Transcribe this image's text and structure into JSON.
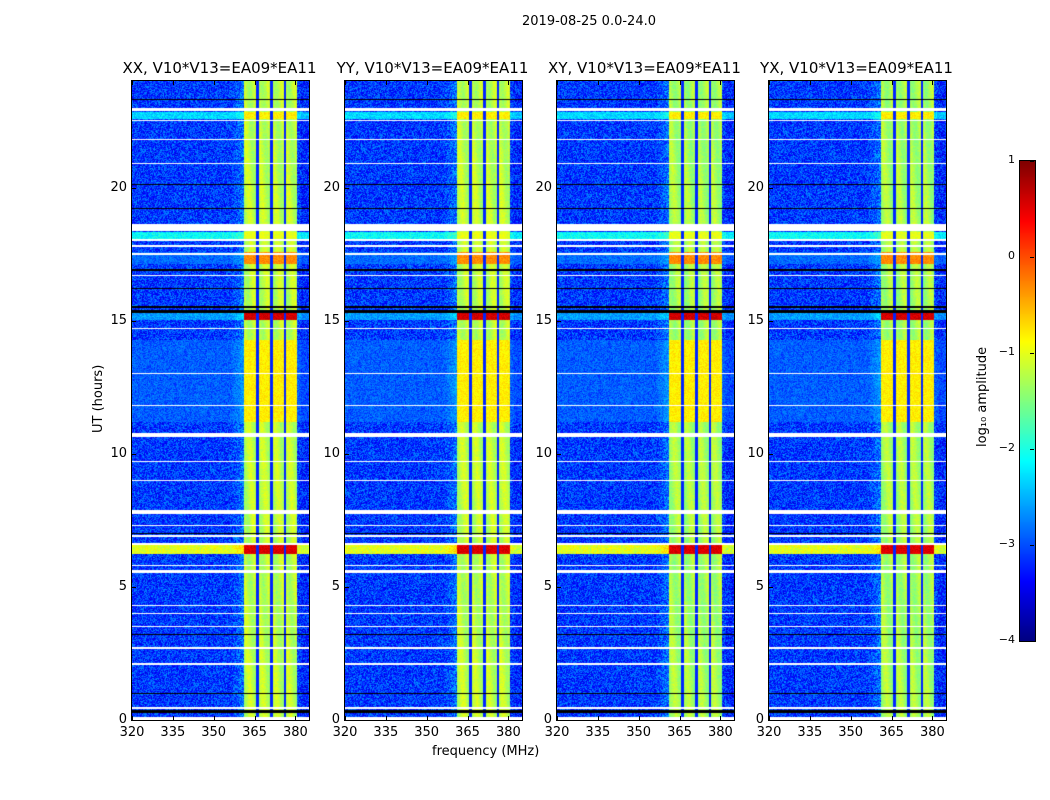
{
  "figure": {
    "suptitle": "2019-08-25 0.0-24.0"
  },
  "chart_data": {
    "type": "heatmap",
    "title": "2019-08-25 0.0-24.0",
    "xlabel": "frequency (MHz)",
    "ylabel": "UT (hours)",
    "xlim": [
      320,
      385
    ],
    "ylim": [
      0,
      24
    ],
    "xticks": [
      320,
      335,
      350,
      365,
      380
    ],
    "yticks": [
      0,
      5,
      10,
      15,
      20
    ],
    "panels": [
      {
        "title": "XX, V10*V13=EA09*EA11"
      },
      {
        "title": "YY, V10*V13=EA09*EA11"
      },
      {
        "title": "XY, V10*V13=EA09*EA11"
      },
      {
        "title": "YX, V10*V13=EA09*EA11"
      }
    ],
    "signal_band_mhz": [
      361,
      380.5
    ],
    "subband_edges_mhz": [
      365.8,
      371,
      376
    ],
    "background_log10_amplitude": -3.1,
    "band_log10_amplitude": -1.3,
    "flagged_hours": [
      [
        0.0,
        0.15
      ],
      [
        0.45,
        0.5
      ],
      [
        2.1,
        2.15
      ],
      [
        2.7,
        2.75
      ],
      [
        3.5,
        3.55
      ],
      [
        4.0,
        4.05
      ],
      [
        4.3,
        4.35
      ],
      [
        5.55,
        5.65
      ],
      [
        5.8,
        5.85
      ],
      [
        6.6,
        6.68
      ],
      [
        6.9,
        6.95
      ],
      [
        7.3,
        7.35
      ],
      [
        7.75,
        7.9
      ],
      [
        9.0,
        9.05
      ],
      [
        9.7,
        9.75
      ],
      [
        10.65,
        10.8
      ],
      [
        11.8,
        11.85
      ],
      [
        13.0,
        13.05
      ],
      [
        14.7,
        14.75
      ],
      [
        16.7,
        16.75
      ],
      [
        17.5,
        17.55
      ],
      [
        17.8,
        17.85
      ],
      [
        18.0,
        18.08
      ],
      [
        18.4,
        18.65
      ],
      [
        20.9,
        20.95
      ],
      [
        21.8,
        21.85
      ],
      [
        22.5,
        22.55
      ],
      [
        22.9,
        23.0
      ]
    ],
    "dropout_hours": [
      [
        0.3,
        0.4
      ],
      [
        1.0,
        1.05
      ],
      [
        3.2,
        3.25
      ],
      [
        7.0,
        7.05
      ],
      [
        15.3,
        15.4
      ],
      [
        15.5,
        15.55
      ],
      [
        16.2,
        16.25
      ],
      [
        16.9,
        16.95
      ],
      [
        19.2,
        19.25
      ],
      [
        20.1,
        20.15
      ],
      [
        23.3,
        23.35
      ]
    ],
    "bright_hours": [
      {
        "range": [
          15.05,
          15.35
        ],
        "band": 0.6,
        "off": -2.6
      },
      {
        "range": [
          6.25,
          6.6
        ],
        "band": 0.55,
        "off": -1.0
      },
      {
        "range": [
          17.15,
          17.6
        ],
        "band": -0.3,
        "off": -2.9
      },
      {
        "range": [
          22.6,
          22.85
        ],
        "band": -0.8,
        "off": -2.3
      },
      {
        "range": [
          18.1,
          18.35
        ],
        "band": -1.0,
        "off": -2.1
      },
      {
        "range": [
          11.2,
          14.3
        ],
        "band": -0.8,
        "off": -3.0
      }
    ],
    "colorbar": {
      "label": "log₁₀ amplitude",
      "range": [
        -4,
        1
      ],
      "ticks": [
        1,
        0,
        -1,
        -2,
        -3,
        -4
      ],
      "colormap": "jet"
    }
  }
}
